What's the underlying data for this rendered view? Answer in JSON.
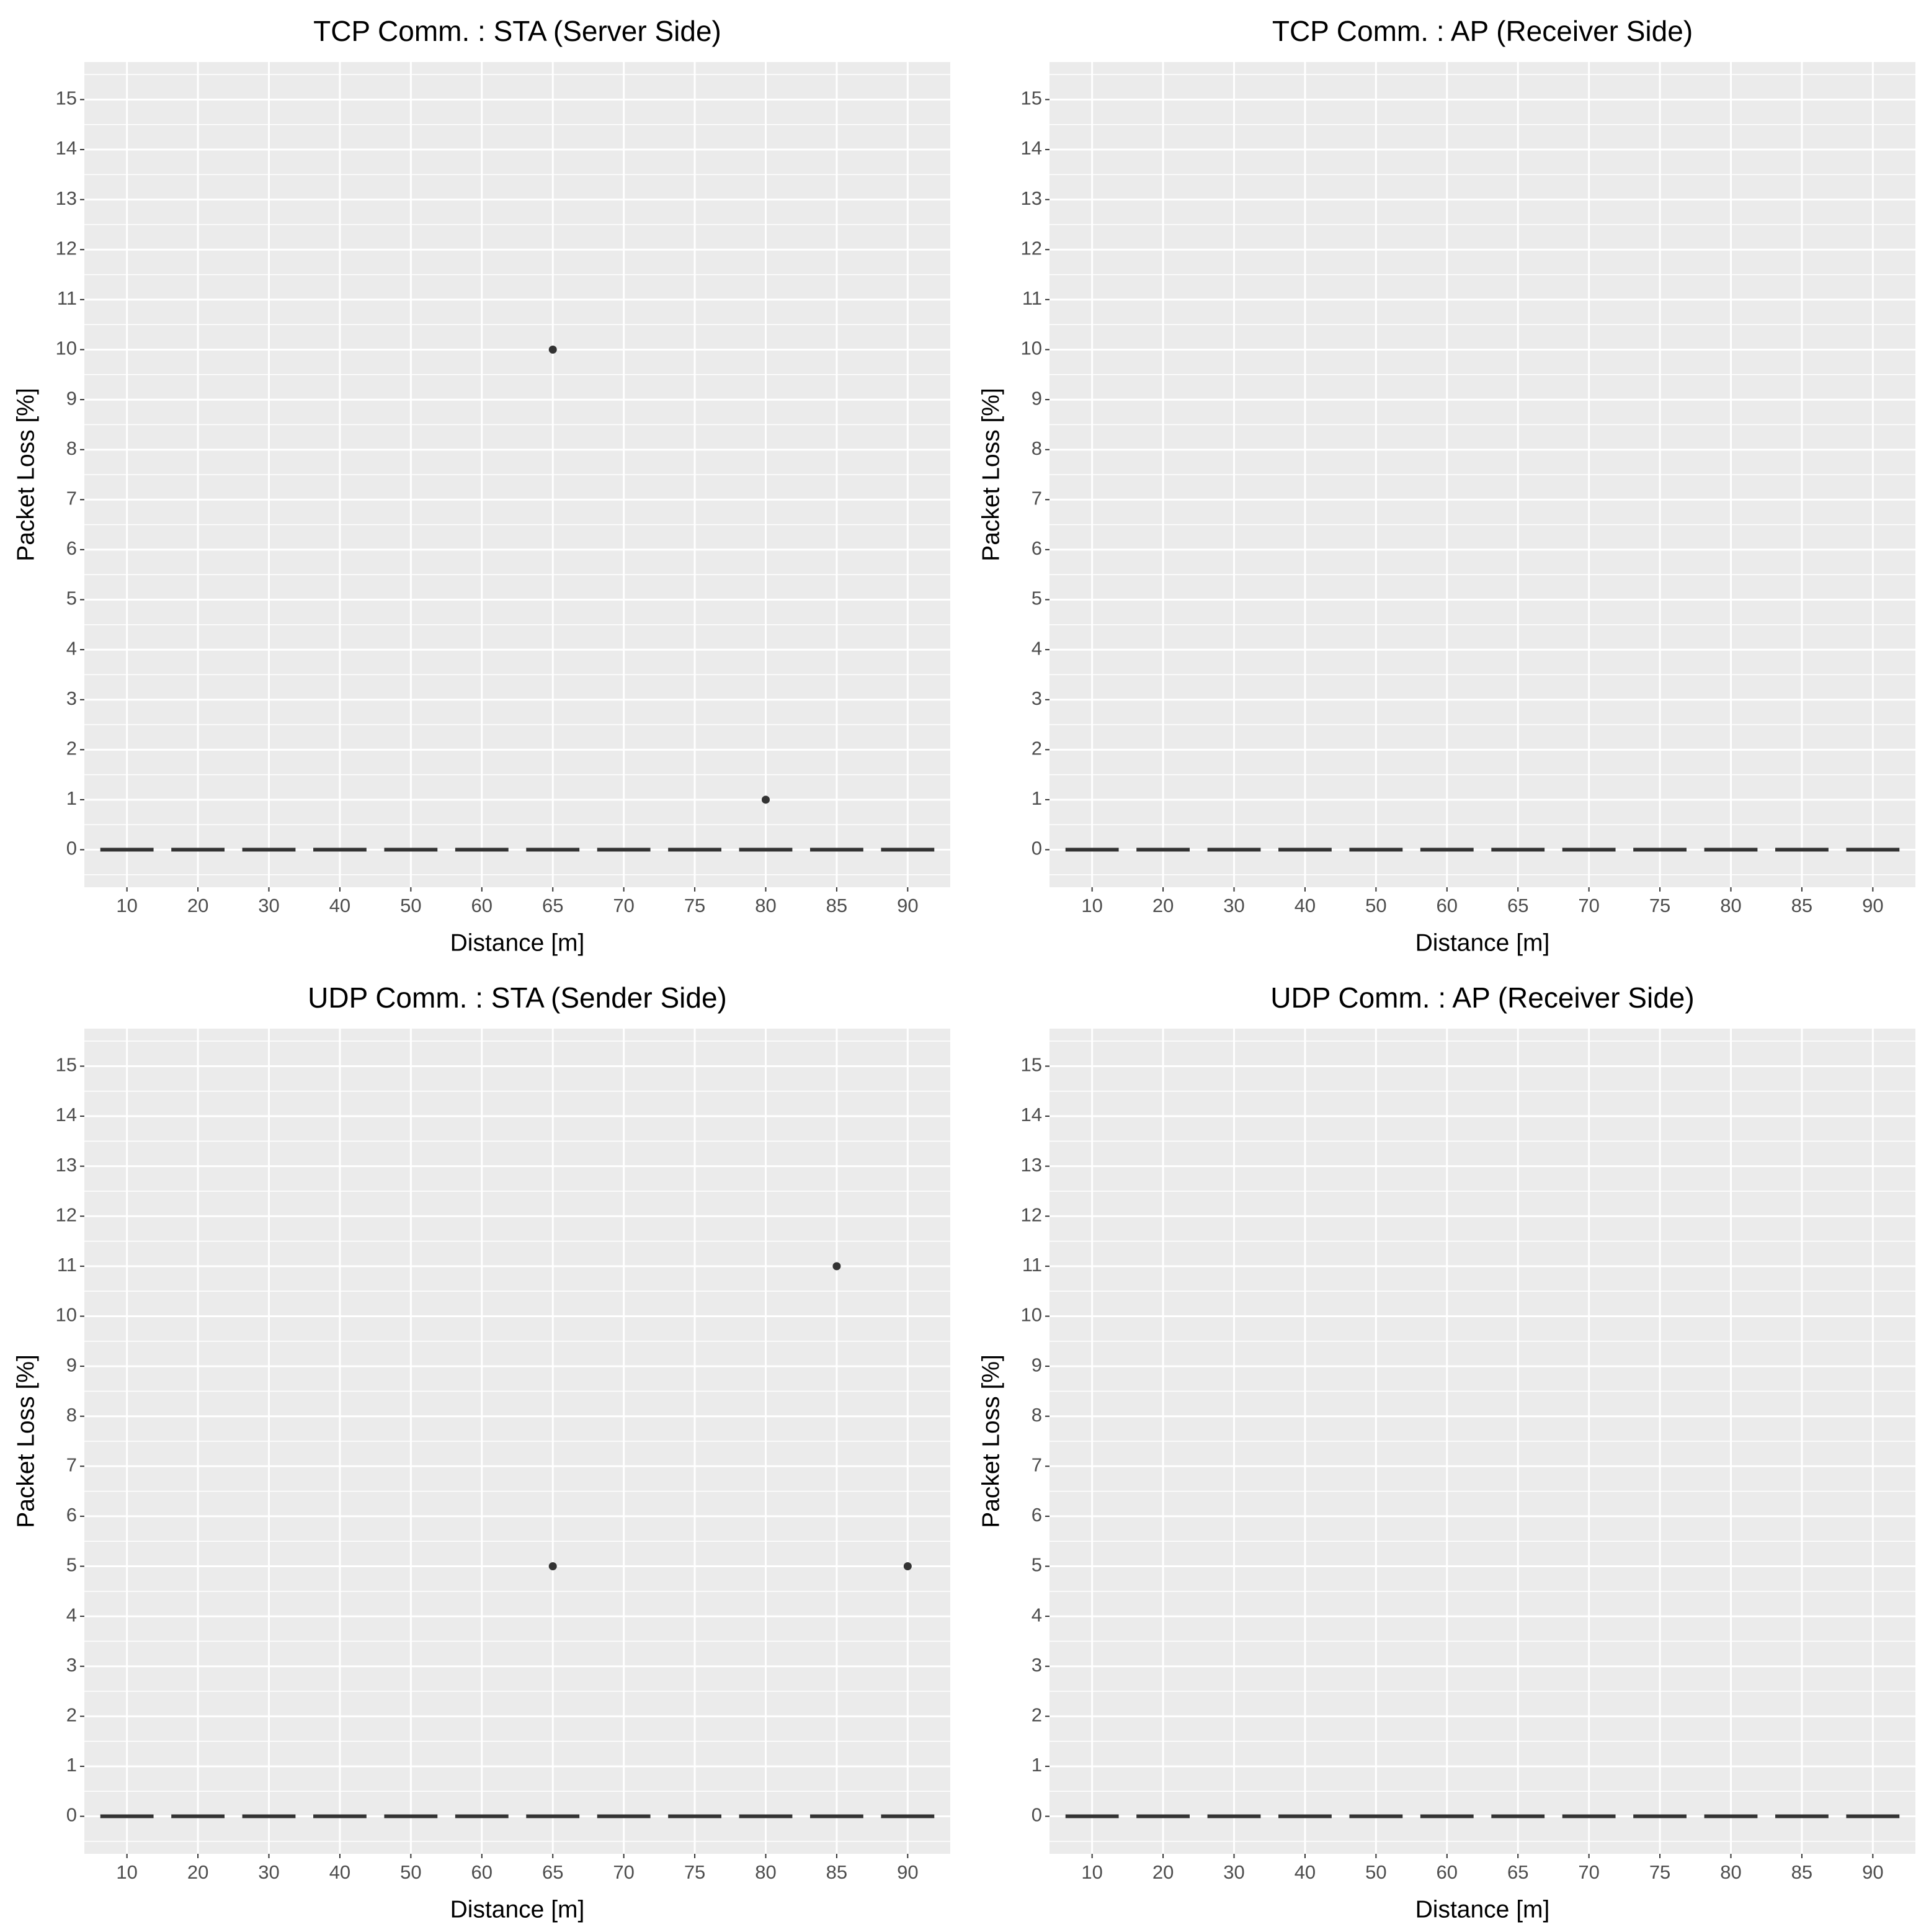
{
  "chart_data": [
    {
      "type": "box",
      "title": "TCP Comm. : STA (Server Side)",
      "x_label": "Distance [m]",
      "y_label": "Packet Loss [%]",
      "categories": [
        "10",
        "20",
        "30",
        "40",
        "50",
        "60",
        "65",
        "70",
        "75",
        "80",
        "85",
        "90"
      ],
      "median": [
        0,
        0,
        0,
        0,
        0,
        0,
        0,
        0,
        0,
        0,
        0,
        0
      ],
      "outliers": [
        {
          "x": "65",
          "value": 10
        },
        {
          "x": "80",
          "value": 1
        }
      ],
      "color": "#333333",
      "ylim": [
        -0.75,
        15.75
      ],
      "yticks": [
        0,
        1,
        2,
        3,
        4,
        5,
        6,
        7,
        8,
        9,
        10,
        11,
        12,
        13,
        14,
        15
      ],
      "grid": true
    },
    {
      "type": "box",
      "title": "TCP Comm. : AP (Receiver Side)",
      "x_label": "Distance [m]",
      "y_label": "Packet Loss [%]",
      "categories": [
        "10",
        "20",
        "30",
        "40",
        "50",
        "60",
        "65",
        "70",
        "75",
        "80",
        "85",
        "90"
      ],
      "median": [
        0,
        0,
        0,
        0,
        0,
        0,
        0,
        0,
        0,
        0,
        0,
        0
      ],
      "outliers": [],
      "color": "#333333",
      "ylim": [
        -0.75,
        15.75
      ],
      "yticks": [
        0,
        1,
        2,
        3,
        4,
        5,
        6,
        7,
        8,
        9,
        10,
        11,
        12,
        13,
        14,
        15
      ],
      "grid": true
    },
    {
      "type": "box",
      "title": "UDP Comm. : STA (Sender Side)",
      "x_label": "Distance [m]",
      "y_label": "Packet Loss [%]",
      "categories": [
        "10",
        "20",
        "30",
        "40",
        "50",
        "60",
        "65",
        "70",
        "75",
        "80",
        "85",
        "90"
      ],
      "median": [
        0,
        0,
        0,
        0,
        0,
        0,
        0,
        0,
        0,
        0,
        0,
        0
      ],
      "outliers": [
        {
          "x": "65",
          "value": 5
        },
        {
          "x": "85",
          "value": 11
        },
        {
          "x": "90",
          "value": 5
        }
      ],
      "color": "#333333",
      "ylim": [
        -0.75,
        15.75
      ],
      "yticks": [
        0,
        1,
        2,
        3,
        4,
        5,
        6,
        7,
        8,
        9,
        10,
        11,
        12,
        13,
        14,
        15
      ],
      "grid": true
    },
    {
      "type": "box",
      "title": "UDP Comm. : AP (Receiver Side)",
      "x_label": "Distance [m]",
      "y_label": "Packet Loss [%]",
      "categories": [
        "10",
        "20",
        "30",
        "40",
        "50",
        "60",
        "65",
        "70",
        "75",
        "80",
        "85",
        "90"
      ],
      "median": [
        0,
        0,
        0,
        0,
        0,
        0,
        0,
        0,
        0,
        0,
        0,
        0
      ],
      "outliers": [],
      "color": "#333333",
      "ylim": [
        -0.75,
        15.75
      ],
      "yticks": [
        0,
        1,
        2,
        3,
        4,
        5,
        6,
        7,
        8,
        9,
        10,
        11,
        12,
        13,
        14,
        15
      ],
      "grid": true
    }
  ]
}
